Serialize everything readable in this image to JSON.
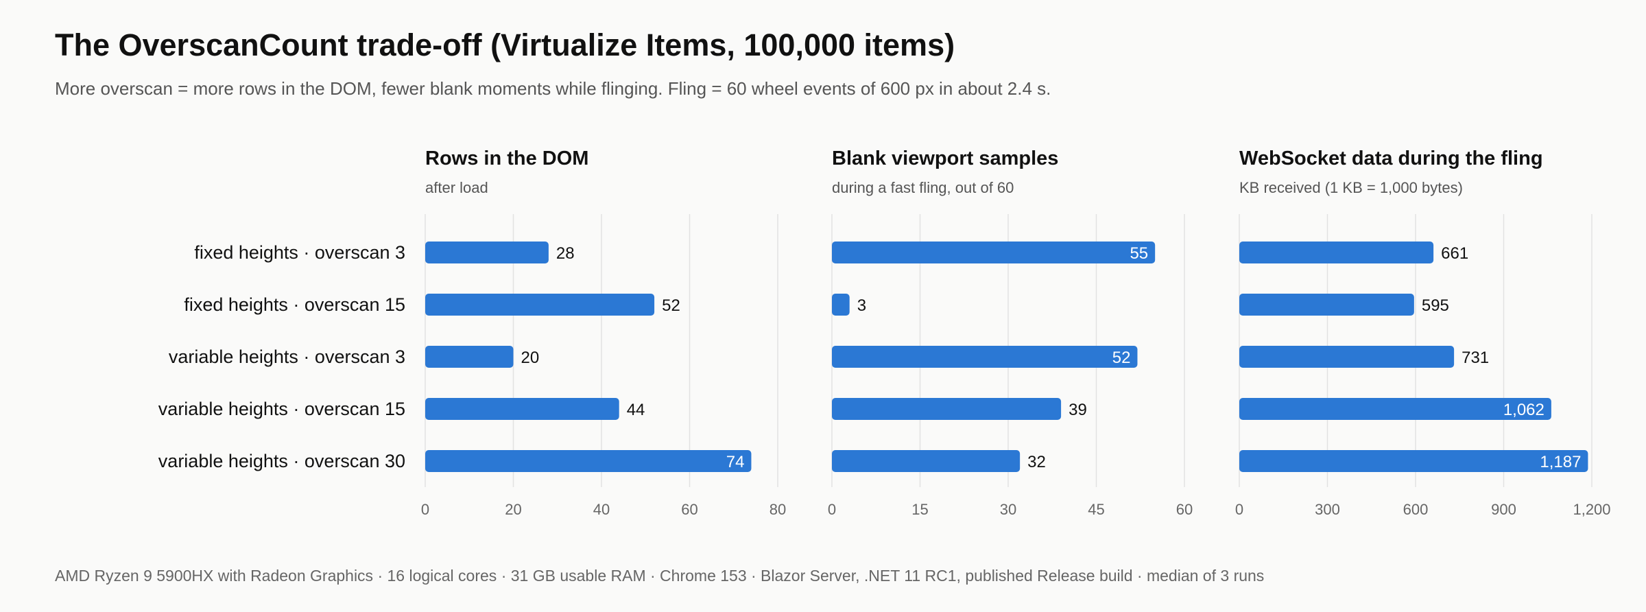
{
  "title": "The OverscanCount trade-off (Virtualize Items, 100,000 items)",
  "subtitle": "More overscan = more rows in the DOM, fewer blank moments while flinging. Fling = 60 wheel events of 600 px in about 2.4 s.",
  "footer": "AMD Ryzen 9 5900HX with Radeon Graphics · 16 logical cores · 31 GB usable RAM · Chrome 153 · Blazor Server, .NET 11 RC1, published Release build · median of 3 runs",
  "colors": {
    "bar": "#2b78d4",
    "grid": "#e2e2e2",
    "axis_text": "#666666",
    "label_text": "#111111"
  },
  "chart_data": [
    {
      "type": "bar",
      "orientation": "horizontal",
      "title": "Rows in the DOM",
      "subtitle": "after load",
      "categories": [
        "fixed heights · overscan 3",
        "fixed heights · overscan 15",
        "variable heights · overscan 3",
        "variable heights · overscan 15",
        "variable heights · overscan 30"
      ],
      "values": [
        28,
        52,
        20,
        44,
        74
      ],
      "value_labels": [
        "28",
        "52",
        "20",
        "44",
        "74"
      ],
      "xlim": [
        0,
        80
      ],
      "ticks": [
        0,
        20,
        40,
        60,
        80
      ],
      "tick_labels": [
        "0",
        "20",
        "40",
        "60",
        "80"
      ],
      "grid": true
    },
    {
      "type": "bar",
      "orientation": "horizontal",
      "title": "Blank viewport samples",
      "subtitle": "during a fast fling, out of 60",
      "categories": [
        "fixed heights · overscan 3",
        "fixed heights · overscan 15",
        "variable heights · overscan 3",
        "variable heights · overscan 15",
        "variable heights · overscan 30"
      ],
      "values": [
        55,
        3,
        52,
        39,
        32
      ],
      "value_labels": [
        "55",
        "3",
        "52",
        "39",
        "32"
      ],
      "xlim": [
        0,
        60
      ],
      "ticks": [
        0,
        15,
        30,
        45,
        60
      ],
      "tick_labels": [
        "0",
        "15",
        "30",
        "45",
        "60"
      ],
      "grid": true
    },
    {
      "type": "bar",
      "orientation": "horizontal",
      "title": "WebSocket data during the fling",
      "subtitle": "KB received (1 KB = 1,000 bytes)",
      "categories": [
        "fixed heights · overscan 3",
        "fixed heights · overscan 15",
        "variable heights · overscan 3",
        "variable heights · overscan 15",
        "variable heights · overscan 30"
      ],
      "values": [
        661,
        595,
        731,
        1062,
        1187
      ],
      "value_labels": [
        "661",
        "595",
        "731",
        "1,062",
        "1,187"
      ],
      "xlim": [
        0,
        1200
      ],
      "ticks": [
        0,
        300,
        600,
        900,
        1200
      ],
      "tick_labels": [
        "0",
        "300",
        "600",
        "900",
        "1,200"
      ],
      "grid": true
    }
  ]
}
